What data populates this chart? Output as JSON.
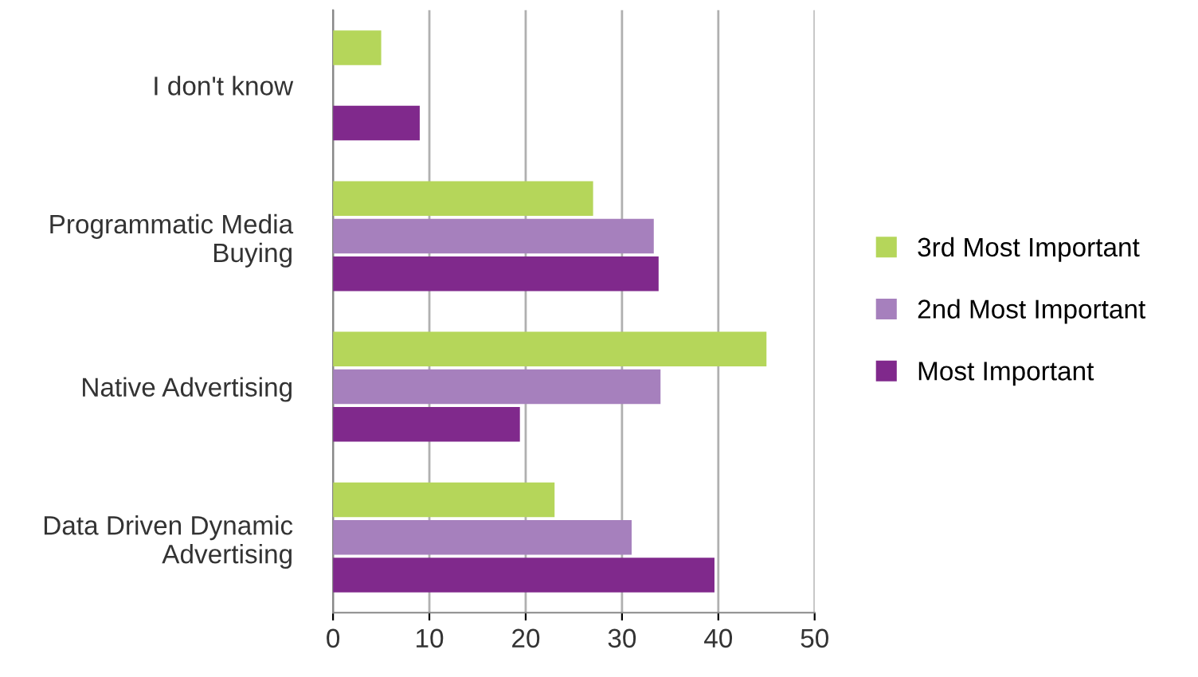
{
  "chart_data": {
    "type": "bar",
    "orientation": "horizontal",
    "categories": [
      "I don't know",
      "Programmatic Media\nBuying",
      "Native Advertising",
      "Data Driven Dynamic\nAdvertising"
    ],
    "series": [
      {
        "name": "3rd Most Important",
        "color": "#b5d65a",
        "values": [
          5,
          27,
          45,
          23
        ]
      },
      {
        "name": "2nd Most Important",
        "color": "#a680bd",
        "values": [
          null,
          33.3,
          34,
          31
        ]
      },
      {
        "name": "Most Important",
        "color": "#80298c",
        "values": [
          9,
          33.8,
          19.4,
          39.6
        ]
      }
    ],
    "xlim": [
      0,
      50
    ],
    "xticks": [
      0,
      10,
      20,
      30,
      40,
      50
    ],
    "grid": "x",
    "legend": "right"
  }
}
